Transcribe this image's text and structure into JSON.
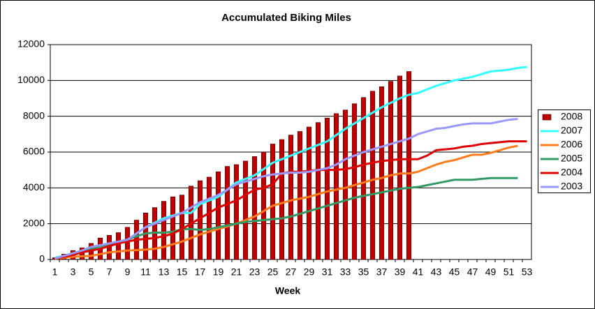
{
  "chart_data": {
    "type": "bar",
    "title": "Accumulated Biking Miles",
    "x_label": "Week",
    "categories": [
      1,
      null,
      3,
      null,
      5,
      null,
      7,
      null,
      9,
      null,
      11,
      null,
      13,
      null,
      15,
      null,
      17,
      null,
      19,
      null,
      21,
      null,
      23,
      null,
      25,
      null,
      27,
      null,
      29,
      null,
      31,
      null,
      33,
      null,
      35,
      null,
      37,
      null,
      39,
      null,
      41,
      null,
      43,
      null,
      45,
      null,
      47,
      null,
      49,
      null,
      51,
      null,
      53
    ],
    "ylim": [
      0,
      12000
    ],
    "yticks": [
      0,
      2000,
      4000,
      6000,
      8000,
      10000,
      12000
    ],
    "grid": true,
    "legend": "right",
    "series": [
      {
        "name": "2008",
        "type": "bar",
        "color": "#c00000",
        "values": [
          100,
          300,
          500,
          650,
          900,
          1200,
          1350,
          1500,
          1800,
          2200,
          2600,
          2900,
          3250,
          3500,
          3600,
          4100,
          4400,
          4600,
          4900,
          5200,
          5300,
          5500,
          5750,
          6000,
          6450,
          6700,
          6950,
          7150,
          7400,
          7650,
          7900,
          8150,
          8350,
          8700,
          9050,
          9400,
          9650,
          9950,
          10250,
          10500,
          null,
          null,
          null,
          null,
          null,
          null,
          null,
          null,
          null,
          null,
          null,
          null,
          null
        ]
      },
      {
        "name": "2007",
        "type": "line",
        "color": "#33ffff",
        "values": [
          100,
          200,
          300,
          400,
          500,
          650,
          800,
          950,
          1100,
          1450,
          1800,
          2050,
          2300,
          2450,
          2600,
          2600,
          3100,
          3300,
          3500,
          3900,
          4300,
          4500,
          4700,
          5050,
          5400,
          5600,
          5800,
          6000,
          6200,
          6400,
          6600,
          6950,
          7300,
          7600,
          7900,
          8200,
          8500,
          8750,
          9000,
          9200,
          9300,
          9500,
          9700,
          9850,
          10000,
          10100,
          10200,
          10350,
          10500,
          10550,
          10600,
          10700,
          10750
        ]
      },
      {
        "name": "2006",
        "type": "line",
        "color": "#ff7b1c",
        "values": [
          50,
          100,
          150,
          180,
          200,
          300,
          400,
          450,
          500,
          520,
          550,
          600,
          700,
          850,
          1000,
          1200,
          1400,
          1550,
          1700,
          1850,
          2000,
          2200,
          2400,
          2700,
          3000,
          3150,
          3300,
          3400,
          3500,
          3650,
          3800,
          3900,
          4000,
          4150,
          4300,
          4450,
          4550,
          4700,
          4800,
          4800,
          4900,
          5100,
          5300,
          5450,
          5550,
          5700,
          5850,
          5850,
          5950,
          6100,
          6250,
          6350,
          null
        ]
      },
      {
        "name": "2005",
        "type": "line",
        "color": "#339966",
        "values": [
          50,
          200,
          350,
          500,
          600,
          750,
          850,
          1000,
          1100,
          1300,
          1450,
          1500,
          1500,
          1550,
          1700,
          1700,
          1650,
          1700,
          1800,
          1900,
          2000,
          2100,
          2150,
          2200,
          2250,
          2300,
          2400,
          2550,
          2700,
          2850,
          3000,
          3150,
          3300,
          3450,
          3550,
          3650,
          3750,
          3850,
          3950,
          4000,
          4050,
          4150,
          4250,
          4350,
          4450,
          4450,
          4450,
          4500,
          4550,
          4550,
          4550,
          4550,
          null
        ]
      },
      {
        "name": "2004",
        "type": "line",
        "color": "#dd0000",
        "values": [
          50,
          150,
          250,
          400,
          500,
          600,
          750,
          900,
          1000,
          1100,
          1150,
          1200,
          1300,
          1450,
          1700,
          2000,
          2300,
          2600,
          2900,
          3100,
          3300,
          3600,
          3900,
          4000,
          4200,
          4800,
          4900,
          4900,
          4950,
          5000,
          5000,
          5000,
          5050,
          5150,
          5300,
          5400,
          5500,
          5550,
          5600,
          5600,
          5600,
          5800,
          6100,
          6150,
          6200,
          6300,
          6350,
          6450,
          6500,
          6550,
          6600,
          6600,
          6600
        ]
      },
      {
        "name": "2003",
        "type": "line",
        "color": "#9999ff",
        "values": [
          50,
          200,
          350,
          500,
          700,
          800,
          900,
          1000,
          1100,
          1450,
          1800,
          2000,
          2200,
          2400,
          2600,
          2900,
          3200,
          3400,
          3600,
          3900,
          4200,
          4350,
          4500,
          4650,
          4750,
          4800,
          4850,
          4850,
          4900,
          5000,
          5100,
          5300,
          5600,
          5800,
          6000,
          6150,
          6300,
          6450,
          6600,
          6750,
          7000,
          7150,
          7300,
          7350,
          7450,
          7550,
          7600,
          7600,
          7600,
          7700,
          7800,
          7850,
          null
        ]
      }
    ]
  }
}
